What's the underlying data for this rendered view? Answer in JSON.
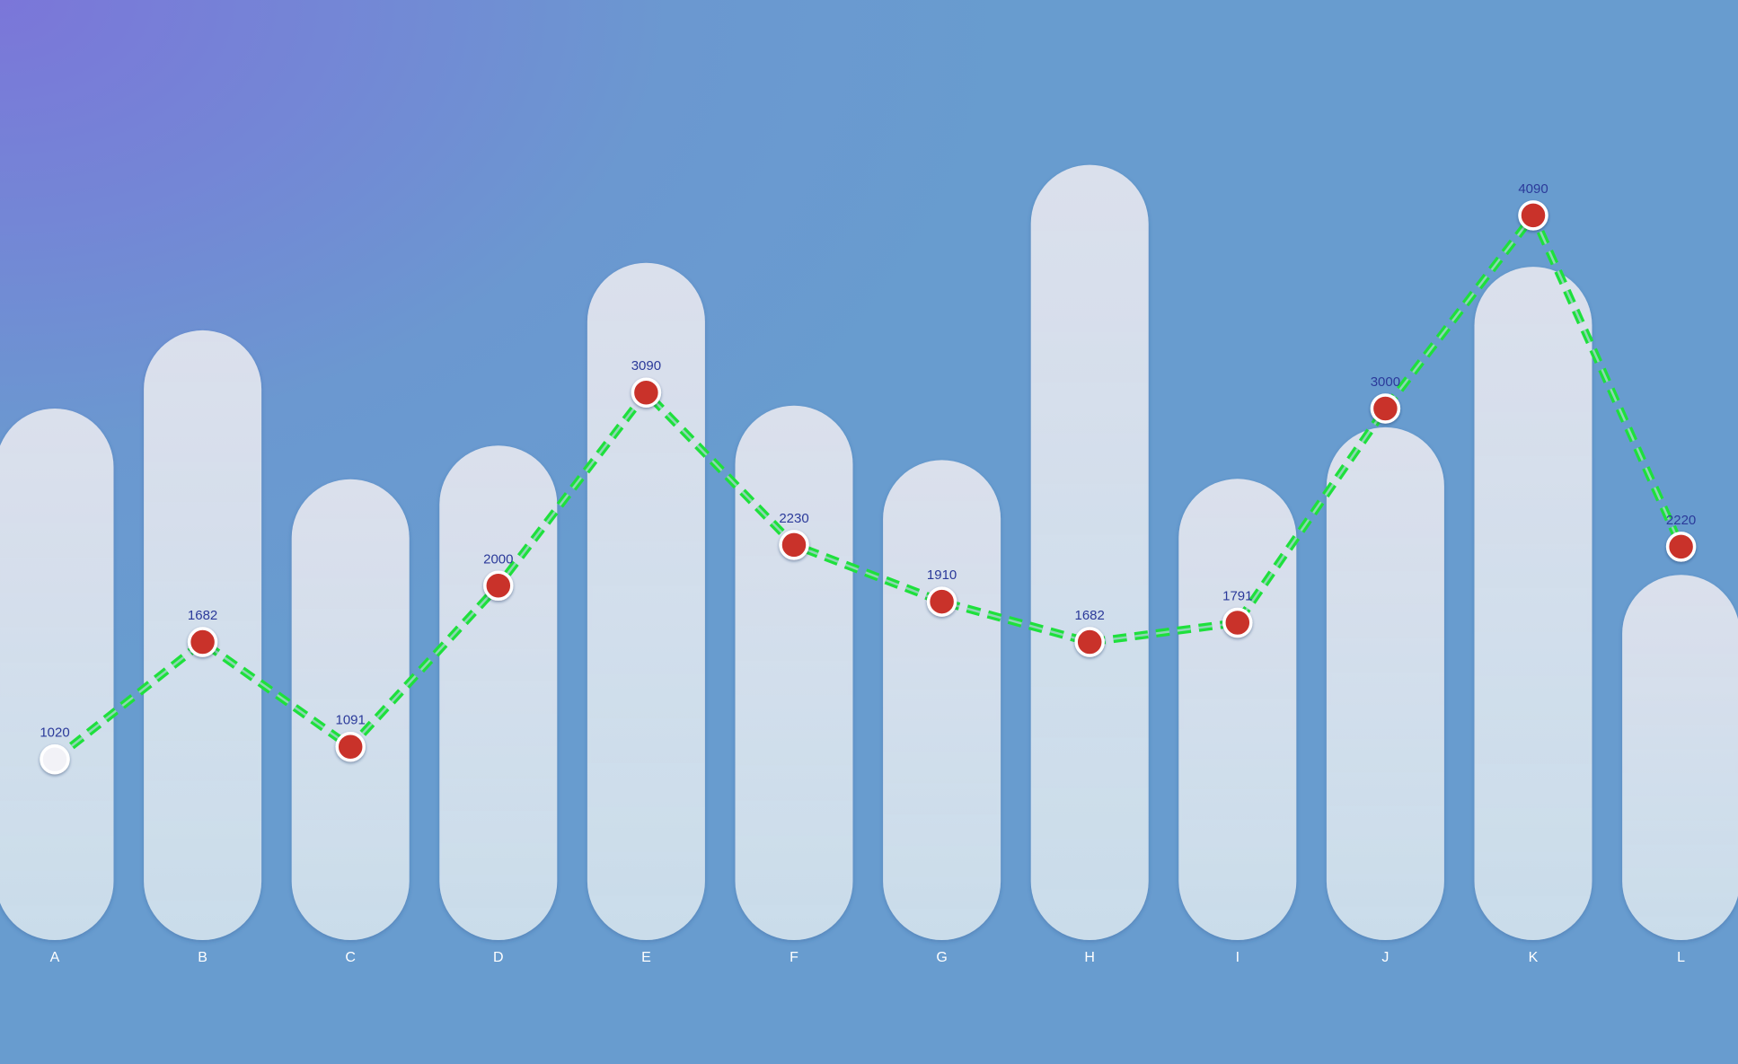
{
  "chart_data": {
    "type": "bar",
    "categories": [
      "A",
      "B",
      "C",
      "D",
      "E",
      "F",
      "G",
      "H",
      "I",
      "J",
      "K",
      "L"
    ],
    "series": [
      {
        "type": "bar",
        "values": [
          3000,
          3441,
          2601,
          2791,
          3822,
          3016,
          2709,
          4375,
          2603,
          2894,
          3800,
          2061
        ]
      },
      {
        "type": "line",
        "values": [
          1020,
          1682,
          1091,
          2000,
          3090,
          2230,
          1910,
          1682,
          1791,
          3000,
          4090,
          2220
        ]
      }
    ],
    "ylim": [
      0,
      4900
    ],
    "grid": false,
    "colors": {
      "bar_fill": "#dde3ee",
      "line": "#1ee03c",
      "point": "#c9302c",
      "point_first": "#f2f2f7",
      "point_stroke": "#ffffff",
      "value_label": "#2b3a9a",
      "tick_label": "#ffffff"
    }
  }
}
